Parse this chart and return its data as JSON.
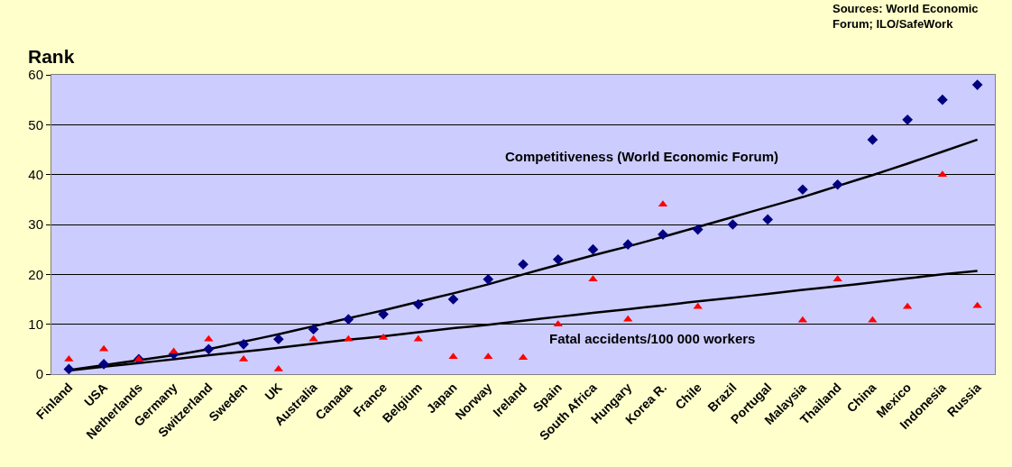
{
  "chart_data": {
    "type": "scatter",
    "ylabel": "Rank",
    "annotations": [
      "Sources: World Economic\nForum; ILO/SafeWork"
    ],
    "categories": [
      "Finland",
      "USA",
      "Netherlands",
      "Germany",
      "Switzerland",
      "Sweden",
      "UK",
      "Australia",
      "Canada",
      "France",
      "Belgium",
      "Japan",
      "Norway",
      "Ireland",
      "Spain",
      "South Africa",
      "Hungary",
      "Korea R.",
      "Chile",
      "Brazil",
      "Portugal",
      "Malaysia",
      "Thailand",
      "China",
      "Mexico",
      "Indonesia",
      "Russia"
    ],
    "series": [
      {
        "marker": "diamond",
        "color": "#000080",
        "values": [
          1,
          2,
          3,
          4,
          5,
          6,
          7,
          9,
          11,
          12,
          14,
          15,
          19,
          22,
          23,
          25,
          26,
          28,
          29,
          30,
          31,
          37,
          38,
          47,
          51,
          55,
          58
        ]
      },
      {
        "marker": "triangle",
        "color": "#ff0000",
        "values": [
          3,
          5,
          3,
          4.5,
          7,
          3,
          1,
          7,
          7,
          7.3,
          7,
          3.5,
          3.5,
          3.3,
          10,
          19,
          11,
          34,
          13.5,
          null,
          null,
          10.8,
          19,
          10.8,
          13.5,
          40,
          13.7
        ]
      },
      {
        "type": "line",
        "name": "Competitiveness (World Economic Forum)",
        "color": "#000000",
        "marker": "none",
        "values": [
          0.8,
          1.8,
          2.8,
          3.8,
          5,
          6.5,
          8,
          9.6,
          11.2,
          12.8,
          14.5,
          16.2,
          18,
          20,
          21.9,
          23.8,
          25.6,
          27.5,
          29.5,
          31.5,
          33.5,
          35.5,
          37.7,
          39.9,
          42.2,
          44.6,
          47
        ]
      },
      {
        "type": "line",
        "name": "Fatal accidents/100 000 workers",
        "color": "#000000",
        "marker": "none",
        "values": [
          0.7,
          1.5,
          2.2,
          3,
          3.8,
          4.5,
          5.3,
          6.1,
          6.9,
          7.6,
          8.4,
          9.2,
          9.9,
          10.7,
          11.5,
          12.3,
          13,
          13.8,
          14.6,
          15.3,
          16.1,
          16.9,
          17.6,
          18.4,
          19.2,
          20,
          20.7
        ]
      }
    ],
    "ylim": [
      0,
      60
    ],
    "yticks": [
      0,
      10,
      20,
      30,
      40,
      50,
      60
    ],
    "grid": "y"
  }
}
